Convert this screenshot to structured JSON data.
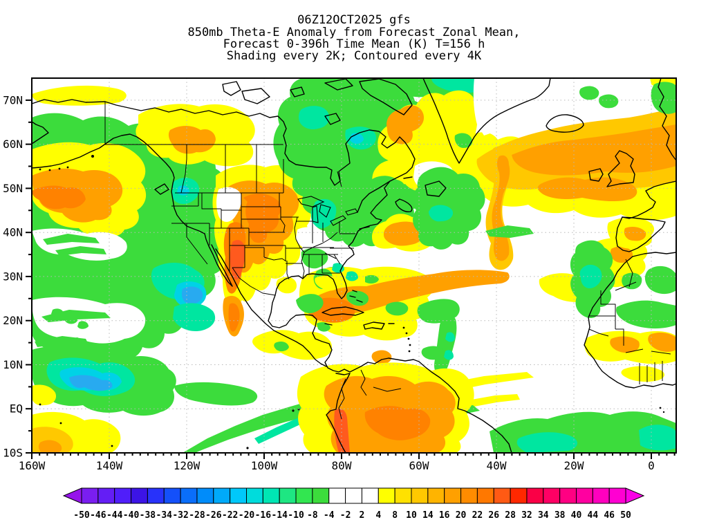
{
  "header": {
    "lines": [
      "06Z12OCT2025 gfs",
      "850mb Theta-E Anomaly from Forecast Zonal Mean,",
      "Forecast 0-396h Time Mean (K) T=156 h",
      "Shading every 2K; Contoured every 4K"
    ]
  },
  "map": {
    "lat_labels": [
      "70N",
      "60N",
      "50N",
      "40N",
      "30N",
      "20N",
      "10N",
      "EQ",
      "10S"
    ],
    "lon_labels": [
      "160W",
      "140W",
      "120W",
      "100W",
      "80W",
      "60W",
      "40W",
      "20W",
      "0"
    ],
    "palette": {
      "white": "#FFFFFF",
      "yellow": "#FFFF00",
      "gold": "#FFC800",
      "orange": "#FFA000",
      "deep_orange": "#FF8200",
      "red_orange": "#FF5A1E",
      "green": "#3CDC3C",
      "teal": "#00E6A0",
      "cyan": "#00D2E6",
      "blue": "#28AAF0",
      "black": "#000000"
    }
  },
  "colorbar": {
    "tick_labels": [
      "-50",
      "-46",
      "-44",
      "-40",
      "-38",
      "-34",
      "-32",
      "-28",
      "-26",
      "-22",
      "-20",
      "-16",
      "-14",
      "-10",
      "-8",
      "-4",
      "-2",
      "2",
      "4",
      "8",
      "10",
      "14",
      "16",
      "20",
      "22",
      "26",
      "28",
      "32",
      "34",
      "38",
      "40",
      "44",
      "46",
      "50"
    ],
    "cell_colors": [
      "#7A1EF0",
      "#641EF5",
      "#501EFA",
      "#3C14E6",
      "#2832FA",
      "#1450FA",
      "#0A6EFA",
      "#008CFA",
      "#00AAFA",
      "#00C8FA",
      "#00DCDC",
      "#00E6B4",
      "#1EE682",
      "#32E650",
      "#3CDC3C",
      "#FFFFFF",
      "#FFFFFF",
      "#FFFFFF",
      "#FFFF00",
      "#FFE100",
      "#FFC800",
      "#FFB400",
      "#FFA000",
      "#FF8C00",
      "#FF7800",
      "#FF5A14",
      "#FF2800",
      "#FA0046",
      "#FF0064",
      "#FF0082",
      "#FF00A0",
      "#FF00BE",
      "#FF00D2"
    ],
    "left_arrow_color": "#9614EB",
    "right_arrow_color": "#FA00E6"
  },
  "chart_data": {
    "type": "heatmap",
    "model_run": "06Z12OCT2025 gfs",
    "title": "850mb Theta-E Anomaly from Forecast Zonal Mean, Forecast 0-396h Time Mean (K) T=156 h",
    "units": "K",
    "shading_interval": "2K",
    "contour_interval": "4K",
    "colorbar_levels": [
      -50,
      -46,
      -44,
      -40,
      -38,
      -34,
      -32,
      -28,
      -26,
      -22,
      -20,
      -16,
      -14,
      -10,
      -8,
      -4,
      -2,
      2,
      4,
      8,
      10,
      14,
      16,
      20,
      22,
      26,
      28,
      32,
      34,
      38,
      40,
      44,
      46,
      50
    ],
    "x_axis": {
      "label": "longitude",
      "ticks": [
        "160W",
        "140W",
        "120W",
        "100W",
        "80W",
        "60W",
        "40W",
        "20W",
        "0"
      ]
    },
    "y_axis": {
      "label": "latitude",
      "ticks": [
        "70N",
        "60N",
        "50N",
        "40N",
        "30N",
        "20N",
        "10N",
        "EQ",
        "10S"
      ]
    }
  }
}
